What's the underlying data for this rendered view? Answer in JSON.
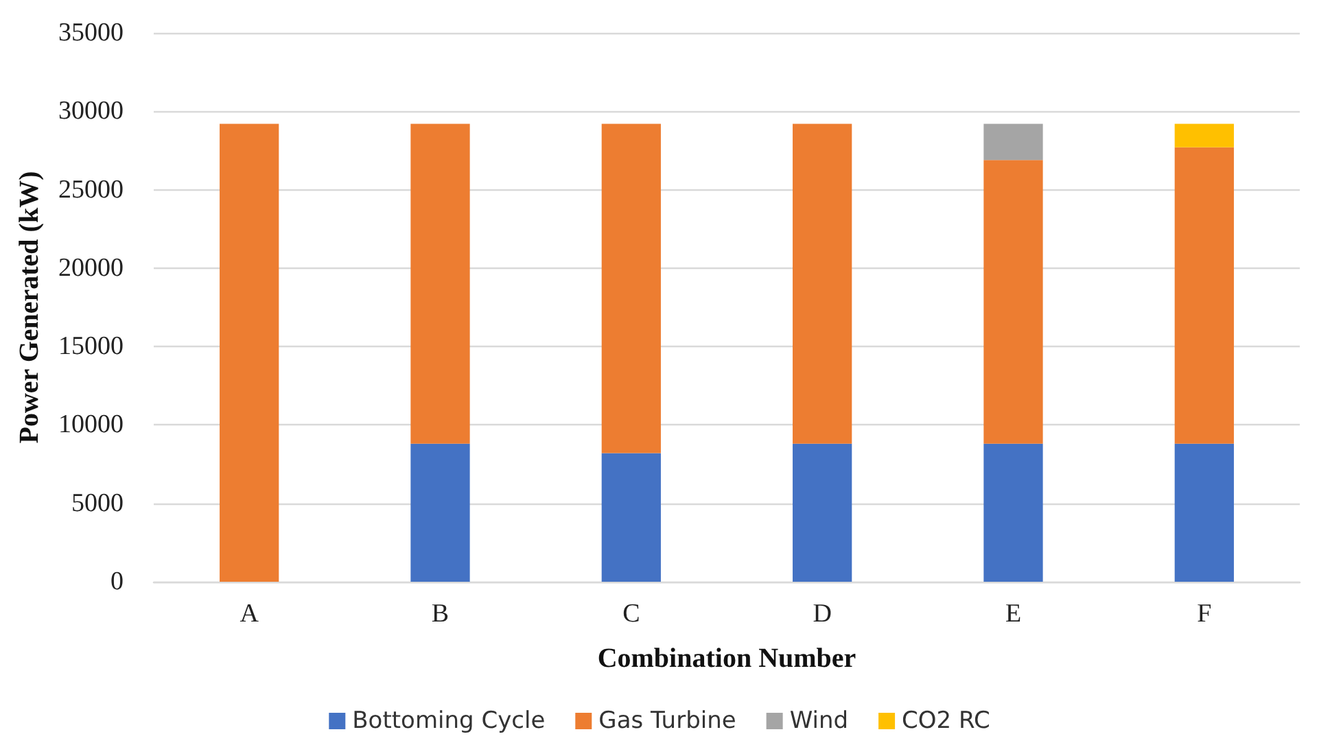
{
  "chart_data": {
    "type": "bar",
    "stacked": true,
    "xlabel": "Combination Number",
    "ylabel": "Power Generated (kW)",
    "categories": [
      "A",
      "B",
      "C",
      "D",
      "E",
      "F"
    ],
    "series": [
      {
        "name": "Bottoming Cycle",
        "color": "#4472c4",
        "values": [
          0,
          8800,
          8200,
          8800,
          8800,
          8800
        ]
      },
      {
        "name": "Gas Turbine",
        "color": "#ed7d31",
        "values": [
          29200,
          20400,
          21000,
          20400,
          18100,
          18900
        ]
      },
      {
        "name": "Wind",
        "color": "#a5a5a5",
        "values": [
          0,
          0,
          0,
          0,
          2300,
          0
        ]
      },
      {
        "name": "CO2 RC",
        "color": "#ffc000",
        "values": [
          0,
          0,
          0,
          0,
          0,
          1500
        ]
      }
    ],
    "ylim": [
      0,
      35000
    ],
    "yticks": [
      0,
      5000,
      10000,
      15000,
      20000,
      25000,
      30000,
      35000
    ],
    "grid": "y",
    "legend": "bottom"
  }
}
